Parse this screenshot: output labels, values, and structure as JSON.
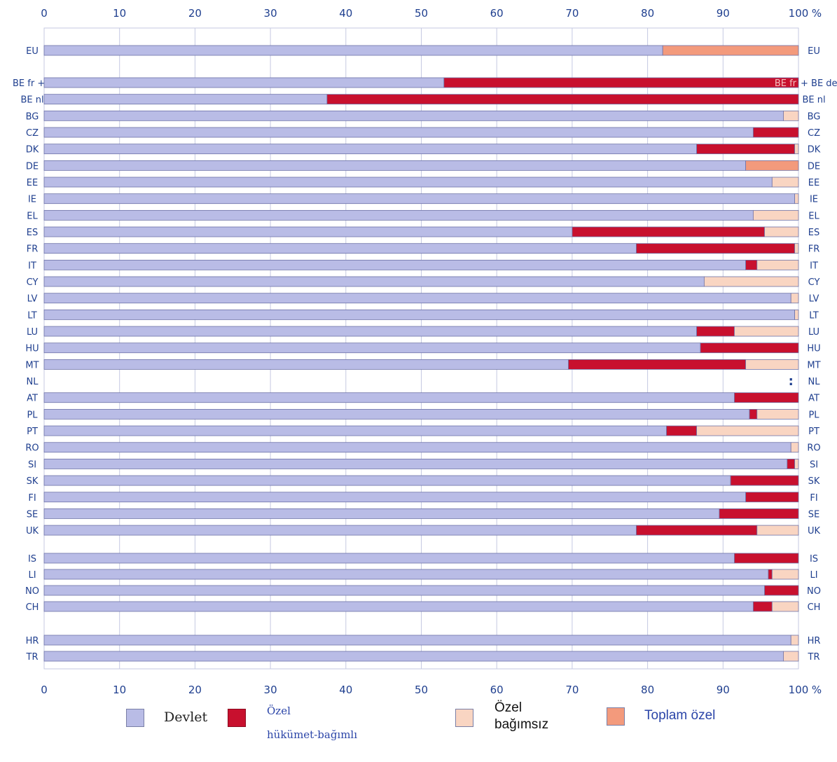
{
  "chart_data": {
    "type": "bar",
    "orientation": "horizontal",
    "stacked": true,
    "x_ticks": [
      "0",
      "10",
      "20",
      "30",
      "40",
      "50",
      "60",
      "70",
      "80",
      "90",
      "100"
    ],
    "x_unit": "%",
    "xlim": [
      0,
      100
    ],
    "grid": true,
    "rows": [
      {
        "label": "EU",
        "values": [
          82,
          0,
          0,
          18
        ]
      },
      {
        "label": "BE fr + BE de",
        "label_left": "BE fr + BE de",
        "label_right": "+ BE de",
        "bar_text": "BE fr",
        "values": [
          53,
          47,
          0,
          0
        ]
      },
      {
        "label": "BE nl",
        "values": [
          37.5,
          62.5,
          0,
          0
        ]
      },
      {
        "label": "BG",
        "values": [
          98,
          0,
          2,
          0
        ]
      },
      {
        "label": "CZ",
        "values": [
          94,
          6,
          0,
          0
        ]
      },
      {
        "label": "DK",
        "values": [
          86.5,
          13,
          0.5,
          0
        ]
      },
      {
        "label": "DE",
        "values": [
          93,
          0,
          0,
          7
        ]
      },
      {
        "label": "EE",
        "values": [
          96.5,
          0,
          3.5,
          0
        ]
      },
      {
        "label": "IE",
        "values": [
          99.5,
          0,
          0.5,
          0
        ]
      },
      {
        "label": "EL",
        "values": [
          94,
          0,
          6,
          0
        ]
      },
      {
        "label": "ES",
        "values": [
          70,
          25.5,
          4.5,
          0
        ]
      },
      {
        "label": "FR",
        "values": [
          78.5,
          21,
          0.5,
          0
        ]
      },
      {
        "label": "IT",
        "values": [
          93,
          1.5,
          5.5,
          0
        ]
      },
      {
        "label": "CY",
        "values": [
          87.5,
          0,
          12.5,
          0
        ]
      },
      {
        "label": "LV",
        "values": [
          99,
          0,
          1,
          0
        ]
      },
      {
        "label": "LT",
        "values": [
          99.5,
          0,
          0.5,
          0
        ]
      },
      {
        "label": "LU",
        "values": [
          86.5,
          5,
          8.5,
          0
        ]
      },
      {
        "label": "HU",
        "values": [
          87,
          13,
          0,
          0
        ]
      },
      {
        "label": "MT",
        "values": [
          69.5,
          23.5,
          7,
          0
        ]
      },
      {
        "label": "NL",
        "values": null,
        "note": ":"
      },
      {
        "label": "AT",
        "values": [
          91.5,
          8.5,
          0,
          0
        ]
      },
      {
        "label": "PL",
        "values": [
          93.5,
          1,
          5.5,
          0
        ]
      },
      {
        "label": "PT",
        "values": [
          82.5,
          4,
          13.5,
          0
        ]
      },
      {
        "label": "RO",
        "values": [
          99,
          0,
          1,
          0
        ]
      },
      {
        "label": "SI",
        "values": [
          98.5,
          1,
          0.5,
          0
        ]
      },
      {
        "label": "SK",
        "values": [
          91,
          9,
          0,
          0
        ]
      },
      {
        "label": "FI",
        "values": [
          93,
          7,
          0,
          0
        ]
      },
      {
        "label": "SE",
        "values": [
          89.5,
          10.5,
          0,
          0
        ]
      },
      {
        "label": "UK",
        "values": [
          78.5,
          16,
          5.5,
          0
        ]
      },
      {
        "label": "IS",
        "values": [
          91.5,
          8.5,
          0,
          0
        ]
      },
      {
        "label": "LI",
        "values": [
          96,
          0.5,
          3.5,
          0
        ]
      },
      {
        "label": "NO",
        "values": [
          95.5,
          4.5,
          0,
          0
        ]
      },
      {
        "label": "CH",
        "values": [
          94,
          2.5,
          3.5,
          0
        ]
      },
      {
        "label": "HR",
        "values": [
          99,
          0,
          1,
          0
        ]
      },
      {
        "label": "TR",
        "values": [
          98,
          0,
          2,
          0
        ]
      }
    ],
    "series": [
      {
        "name": "Devlet",
        "color": "#b9bce6"
      },
      {
        "name": "Özel hükümet-bağımlı",
        "color": "#c8102e"
      },
      {
        "name": "Özel bağımsız",
        "color": "#f9d5c2"
      },
      {
        "name": "Toplam özel",
        "color": "#f39a7c"
      }
    ]
  },
  "legend": {
    "devlet": "Devlet",
    "ozel_hb_line1": "Özel",
    "ozel_hb_line2": "hükümet-bağımlı",
    "ozel_b_line1": "Özel",
    "ozel_b_line2": "bağımsız",
    "toplam": "Toplam özel"
  }
}
